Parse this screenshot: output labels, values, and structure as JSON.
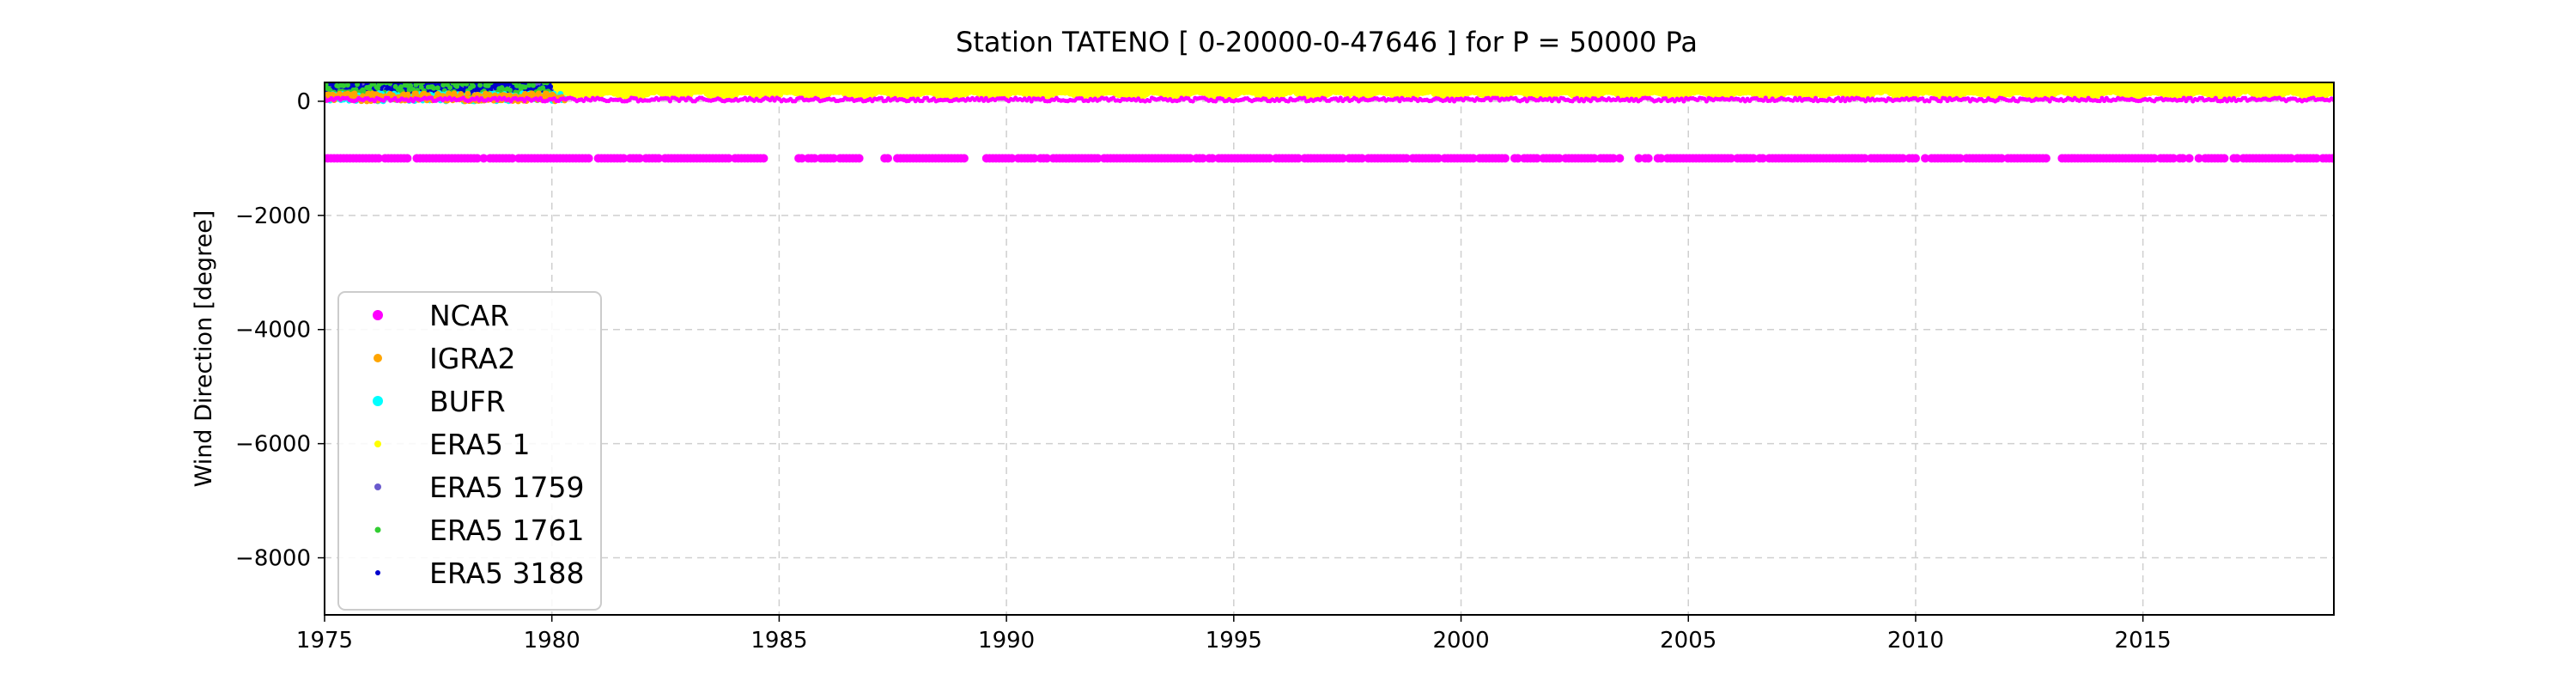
{
  "chart_data": {
    "type": "scatter",
    "title": "Station  TATENO [ 0-20000-0-47646 ]  for P = 50000 Pa",
    "xlabel": "",
    "ylabel": "Wind Direction [degree]",
    "xlim": [
      1975,
      2019.2
    ],
    "ylim": [
      -9000,
      330
    ],
    "xticks": [
      1975,
      1980,
      1985,
      1990,
      1995,
      2000,
      2005,
      2010,
      2015
    ],
    "yticks": [
      0,
      -2000,
      -4000,
      -6000,
      -8000
    ],
    "grid": true,
    "legend_position": "lower-left",
    "series": [
      {
        "name": "NCAR",
        "color": "#ff00ff",
        "x_range": [
          1975,
          2019.2
        ],
        "y_values": [
          -999,
          0,
          360
        ],
        "gaps": [
          [
            1984.7,
            1985.4
          ],
          [
            1986.8,
            1987.3
          ],
          [
            1989.1,
            1989.5
          ],
          [
            2003.5,
            2003.9
          ],
          [
            2012.9,
            2013.2
          ]
        ]
      },
      {
        "name": "IGRA2",
        "color": "#ffa500",
        "x_range": [
          1975,
          1980.3
        ],
        "y_range": [
          0,
          360
        ]
      },
      {
        "name": "BUFR",
        "color": "#00ffff",
        "x_range": [
          1975,
          1980.3
        ],
        "y_range": [
          0,
          360
        ]
      },
      {
        "name": "ERA5 1",
        "color": "#ffff00",
        "x_range": [
          1980,
          2019.2
        ],
        "y_range": [
          0,
          360
        ]
      },
      {
        "name": "ERA5 1759",
        "color": "#6a5acd",
        "x_range": [
          1975,
          1980
        ],
        "y_range": [
          0,
          360
        ]
      },
      {
        "name": "ERA5 1761",
        "color": "#32cd32",
        "x_range": [
          1975,
          1980
        ],
        "y_range": [
          0,
          360
        ]
      },
      {
        "name": "ERA5 3188",
        "color": "#0000cd",
        "x_range": [
          1975,
          1980
        ],
        "y_range": [
          0,
          360
        ]
      }
    ]
  }
}
